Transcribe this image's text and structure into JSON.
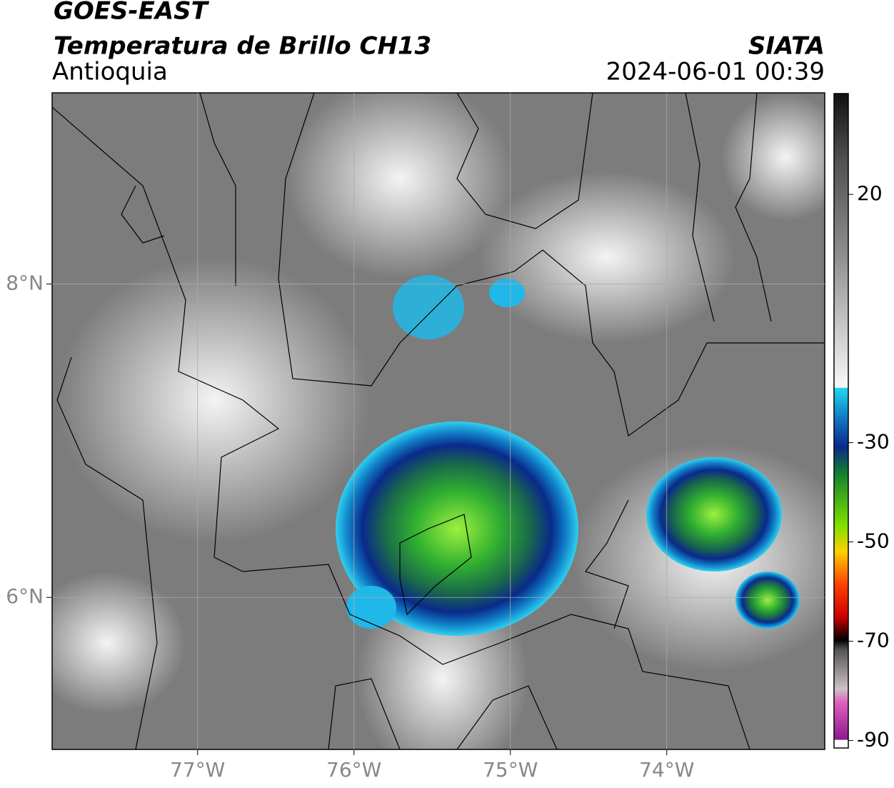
{
  "header": {
    "satellite": "GOES-EAST",
    "title": "Temperatura de Brillo CH13",
    "region": "Antioquia",
    "source": "SIATA",
    "timestamp": "2024-06-01 00:39"
  },
  "map": {
    "xlim": [
      -77.93,
      -72.99
    ],
    "ylim": [
      5.03,
      9.22
    ],
    "xticks": [
      {
        "value": -77,
        "label": "77°W"
      },
      {
        "value": -76,
        "label": "76°W"
      },
      {
        "value": -75,
        "label": "75°W"
      },
      {
        "value": -74,
        "label": "74°W"
      }
    ],
    "yticks": [
      {
        "value": 8,
        "label": "8°N"
      },
      {
        "value": 6,
        "label": "6°N"
      }
    ],
    "grid": true
  },
  "colorbar": {
    "lim": [
      -91.5,
      40.3
    ],
    "ticks": [
      20,
      -30,
      -50,
      -70,
      -90
    ]
  }
}
